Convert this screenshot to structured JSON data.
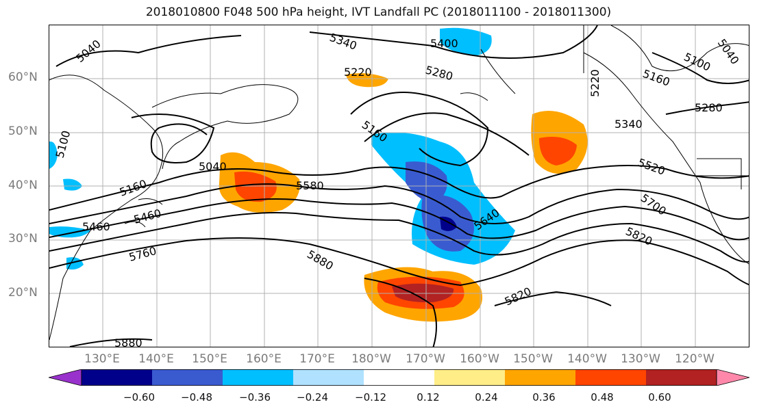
{
  "title": "2018010800 F048 500 hPa height, IVT Landfall PC (2018011100 - 2018011300)",
  "lat_labels": [
    "60°N",
    "50°N",
    "40°N",
    "30°N",
    "20°N"
  ],
  "lon_labels": [
    "130°E",
    "140°E",
    "150°E",
    "160°E",
    "170°E",
    "180°W",
    "170°W",
    "160°W",
    "150°W",
    "140°W",
    "130°W",
    "120°W"
  ],
  "contour_labels": [
    "5040",
    "5340",
    "5400",
    "5220",
    "5280",
    "5160",
    "5100",
    "5040",
    "5040",
    "5160",
    "5580",
    "5460",
    "5460",
    "5760",
    "5880",
    "5640",
    "5520",
    "5700",
    "5820",
    "5820",
    "5880",
    "5280",
    "5340",
    "5160",
    "5100",
    "5220"
  ],
  "colorbar": {
    "ticks": [
      "−0.60",
      "−0.48",
      "−0.36",
      "−0.24",
      "−0.12",
      "0.12",
      "0.24",
      "0.36",
      "0.48",
      "0.60"
    ],
    "colors": [
      "#9932cc",
      "#00008b",
      "#3a5bd0",
      "#00bfff",
      "#b0e2ff",
      "#ffffff",
      "#ffee88",
      "#ffa500",
      "#ff4500",
      "#b22222",
      "#ff88aa"
    ]
  }
}
